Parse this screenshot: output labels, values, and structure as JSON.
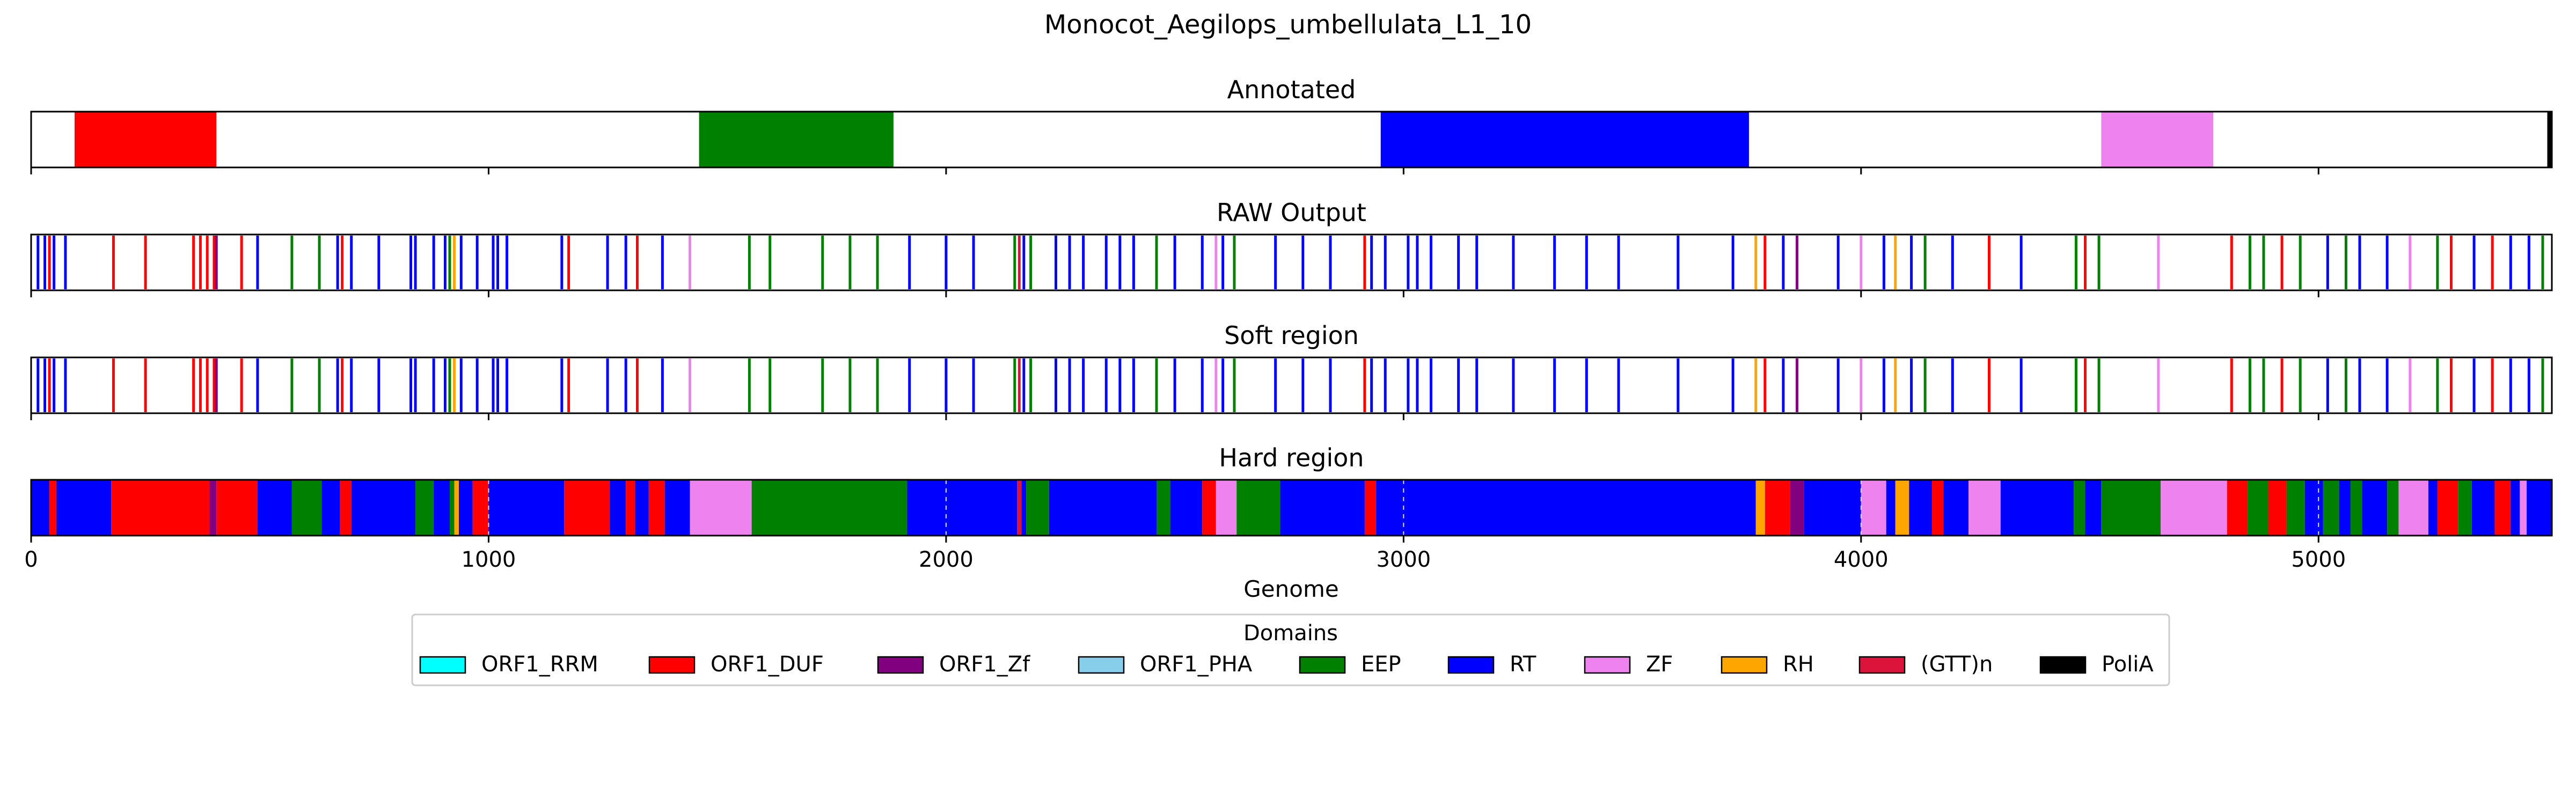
{
  "chart_data": {
    "type": "track",
    "title": "Monocot_Aegilops_umbellulata_L1_10",
    "xlabel": "Genome",
    "xlim": [
      0,
      5510
    ],
    "xticks": [
      0,
      1000,
      2000,
      3000,
      4000,
      5000
    ],
    "legend": {
      "title": "Domains",
      "placement": "bottom-center",
      "entries": [
        {
          "name": "ORF1_RRM",
          "color": "#00ffff"
        },
        {
          "name": "ORF1_DUF",
          "color": "#ff0000"
        },
        {
          "name": "ORF1_Zf",
          "color": "#800080"
        },
        {
          "name": "ORF1_PHA",
          "color": "#87ceeb"
        },
        {
          "name": "EEP",
          "color": "#008000"
        },
        {
          "name": "RT",
          "color": "#0000ff"
        },
        {
          "name": "ZF",
          "color": "#ee82ee"
        },
        {
          "name": "RH",
          "color": "#ffa500"
        },
        {
          "name": "(GTT)n",
          "color": "#dc143c"
        },
        {
          "name": "PoliA",
          "color": "#000000"
        }
      ]
    },
    "tracks": [
      {
        "name": "Annotated",
        "type": "spans",
        "spans": [
          {
            "start": 95,
            "end": 405,
            "domain": "ORF1_DUF"
          },
          {
            "start": 1460,
            "end": 1885,
            "domain": "EEP"
          },
          {
            "start": 2950,
            "end": 3755,
            "domain": "RT"
          },
          {
            "start": 4525,
            "end": 4770,
            "domain": "ZF"
          },
          {
            "start": 5500,
            "end": 5510,
            "domain": "PoliA"
          }
        ]
      },
      {
        "name": "RAW Output",
        "type": "marks",
        "marks": [
          {
            "x": 15,
            "domain": "RT"
          },
          {
            "x": 30,
            "domain": "RT"
          },
          {
            "x": 40,
            "domain": "ORF1_DUF"
          },
          {
            "x": 50,
            "domain": "RT"
          },
          {
            "x": 75,
            "domain": "RT"
          },
          {
            "x": 180,
            "domain": "ORF1_DUF"
          },
          {
            "x": 250,
            "domain": "ORF1_DUF"
          },
          {
            "x": 355,
            "domain": "ORF1_DUF"
          },
          {
            "x": 370,
            "domain": "ORF1_DUF"
          },
          {
            "x": 385,
            "domain": "ORF1_DUF"
          },
          {
            "x": 400,
            "domain": "ORF1_DUF"
          },
          {
            "x": 405,
            "domain": "ORF1_Zf"
          },
          {
            "x": 460,
            "domain": "ORF1_DUF"
          },
          {
            "x": 495,
            "domain": "RT"
          },
          {
            "x": 570,
            "domain": "EEP"
          },
          {
            "x": 630,
            "domain": "EEP"
          },
          {
            "x": 670,
            "domain": "RT"
          },
          {
            "x": 680,
            "domain": "ORF1_DUF"
          },
          {
            "x": 700,
            "domain": "RT"
          },
          {
            "x": 760,
            "domain": "RT"
          },
          {
            "x": 830,
            "domain": "RT"
          },
          {
            "x": 840,
            "domain": "RT"
          },
          {
            "x": 880,
            "domain": "RT"
          },
          {
            "x": 905,
            "domain": "RT"
          },
          {
            "x": 915,
            "domain": "EEP"
          },
          {
            "x": 925,
            "domain": "RH"
          },
          {
            "x": 940,
            "domain": "RT"
          },
          {
            "x": 975,
            "domain": "RT"
          },
          {
            "x": 1010,
            "domain": "RT"
          },
          {
            "x": 1020,
            "domain": "RT"
          },
          {
            "x": 1040,
            "domain": "RT"
          },
          {
            "x": 1160,
            "domain": "RT"
          },
          {
            "x": 1175,
            "domain": "ORF1_DUF"
          },
          {
            "x": 1260,
            "domain": "RT"
          },
          {
            "x": 1300,
            "domain": "RT"
          },
          {
            "x": 1325,
            "domain": "ORF1_DUF"
          },
          {
            "x": 1380,
            "domain": "RT"
          },
          {
            "x": 1440,
            "domain": "ZF"
          },
          {
            "x": 1570,
            "domain": "EEP"
          },
          {
            "x": 1615,
            "domain": "EEP"
          },
          {
            "x": 1730,
            "domain": "EEP"
          },
          {
            "x": 1790,
            "domain": "EEP"
          },
          {
            "x": 1850,
            "domain": "EEP"
          },
          {
            "x": 1920,
            "domain": "RT"
          },
          {
            "x": 2000,
            "domain": "RT"
          },
          {
            "x": 2060,
            "domain": "RT"
          },
          {
            "x": 2150,
            "domain": "EEP"
          },
          {
            "x": 2160,
            "domain": "(GTT)n"
          },
          {
            "x": 2170,
            "domain": "RT"
          },
          {
            "x": 2185,
            "domain": "EEP"
          },
          {
            "x": 2240,
            "domain": "RT"
          },
          {
            "x": 2270,
            "domain": "RT"
          },
          {
            "x": 2300,
            "domain": "RT"
          },
          {
            "x": 2350,
            "domain": "RT"
          },
          {
            "x": 2380,
            "domain": "RT"
          },
          {
            "x": 2410,
            "domain": "RT"
          },
          {
            "x": 2460,
            "domain": "EEP"
          },
          {
            "x": 2500,
            "domain": "RT"
          },
          {
            "x": 2560,
            "domain": "RT"
          },
          {
            "x": 2590,
            "domain": "ZF"
          },
          {
            "x": 2605,
            "domain": "RT"
          },
          {
            "x": 2630,
            "domain": "EEP"
          },
          {
            "x": 2720,
            "domain": "RT"
          },
          {
            "x": 2780,
            "domain": "RT"
          },
          {
            "x": 2840,
            "domain": "RT"
          },
          {
            "x": 2915,
            "domain": "ORF1_DUF"
          },
          {
            "x": 2930,
            "domain": "RT"
          },
          {
            "x": 2960,
            "domain": "RT"
          },
          {
            "x": 3010,
            "domain": "RT"
          },
          {
            "x": 3030,
            "domain": "RT"
          },
          {
            "x": 3060,
            "domain": "RT"
          },
          {
            "x": 3120,
            "domain": "RT"
          },
          {
            "x": 3160,
            "domain": "RT"
          },
          {
            "x": 3240,
            "domain": "RT"
          },
          {
            "x": 3330,
            "domain": "RT"
          },
          {
            "x": 3400,
            "domain": "RT"
          },
          {
            "x": 3470,
            "domain": "RT"
          },
          {
            "x": 3600,
            "domain": "RT"
          },
          {
            "x": 3720,
            "domain": "RT"
          },
          {
            "x": 3770,
            "domain": "RH"
          },
          {
            "x": 3790,
            "domain": "ORF1_DUF"
          },
          {
            "x": 3830,
            "domain": "RT"
          },
          {
            "x": 3860,
            "domain": "ORF1_Zf"
          },
          {
            "x": 3950,
            "domain": "RT"
          },
          {
            "x": 4000,
            "domain": "ZF"
          },
          {
            "x": 4050,
            "domain": "RT"
          },
          {
            "x": 4075,
            "domain": "RH"
          },
          {
            "x": 4110,
            "domain": "RT"
          },
          {
            "x": 4140,
            "domain": "EEP"
          },
          {
            "x": 4200,
            "domain": "RT"
          },
          {
            "x": 4280,
            "domain": "ORF1_DUF"
          },
          {
            "x": 4350,
            "domain": "RT"
          },
          {
            "x": 4470,
            "domain": "EEP"
          },
          {
            "x": 4490,
            "domain": "ORF1_DUF"
          },
          {
            "x": 4520,
            "domain": "EEP"
          },
          {
            "x": 4650,
            "domain": "ZF"
          },
          {
            "x": 4810,
            "domain": "ORF1_DUF"
          },
          {
            "x": 4850,
            "domain": "EEP"
          },
          {
            "x": 4880,
            "domain": "EEP"
          },
          {
            "x": 4920,
            "domain": "ORF1_DUF"
          },
          {
            "x": 4960,
            "domain": "EEP"
          },
          {
            "x": 5020,
            "domain": "RT"
          },
          {
            "x": 5060,
            "domain": "EEP"
          },
          {
            "x": 5090,
            "domain": "RT"
          },
          {
            "x": 5150,
            "domain": "RT"
          },
          {
            "x": 5200,
            "domain": "ZF"
          },
          {
            "x": 5260,
            "domain": "EEP"
          },
          {
            "x": 5290,
            "domain": "ORF1_DUF"
          },
          {
            "x": 5340,
            "domain": "RT"
          },
          {
            "x": 5380,
            "domain": "ORF1_DUF"
          },
          {
            "x": 5420,
            "domain": "RT"
          },
          {
            "x": 5460,
            "domain": "RT"
          },
          {
            "x": 5490,
            "domain": "EEP"
          }
        ]
      },
      {
        "name": "Soft region",
        "type": "marks",
        "same_as": "RAW Output"
      },
      {
        "name": "Hard region",
        "type": "spans",
        "spans": [
          {
            "start": 0,
            "end": 40,
            "domain": "RT"
          },
          {
            "start": 40,
            "end": 55,
            "domain": "ORF1_DUF"
          },
          {
            "start": 55,
            "end": 175,
            "domain": "RT"
          },
          {
            "start": 175,
            "end": 390,
            "domain": "ORF1_DUF"
          },
          {
            "start": 390,
            "end": 405,
            "domain": "ORF1_Zf"
          },
          {
            "start": 405,
            "end": 495,
            "domain": "ORF1_DUF"
          },
          {
            "start": 495,
            "end": 570,
            "domain": "RT"
          },
          {
            "start": 570,
            "end": 635,
            "domain": "EEP"
          },
          {
            "start": 635,
            "end": 675,
            "domain": "RT"
          },
          {
            "start": 675,
            "end": 700,
            "domain": "ORF1_DUF"
          },
          {
            "start": 700,
            "end": 840,
            "domain": "RT"
          },
          {
            "start": 840,
            "end": 880,
            "domain": "EEP"
          },
          {
            "start": 880,
            "end": 915,
            "domain": "RT"
          },
          {
            "start": 915,
            "end": 925,
            "domain": "EEP"
          },
          {
            "start": 925,
            "end": 935,
            "domain": "RH"
          },
          {
            "start": 935,
            "end": 965,
            "domain": "RT"
          },
          {
            "start": 965,
            "end": 1000,
            "domain": "ORF1_DUF"
          },
          {
            "start": 1000,
            "end": 1165,
            "domain": "RT"
          },
          {
            "start": 1165,
            "end": 1265,
            "domain": "ORF1_DUF"
          },
          {
            "start": 1265,
            "end": 1300,
            "domain": "RT"
          },
          {
            "start": 1300,
            "end": 1320,
            "domain": "ORF1_DUF"
          },
          {
            "start": 1320,
            "end": 1350,
            "domain": "RT"
          },
          {
            "start": 1350,
            "end": 1385,
            "domain": "ORF1_DUF"
          },
          {
            "start": 1385,
            "end": 1440,
            "domain": "RT"
          },
          {
            "start": 1440,
            "end": 1575,
            "domain": "ZF"
          },
          {
            "start": 1575,
            "end": 1915,
            "domain": "EEP"
          },
          {
            "start": 1915,
            "end": 2155,
            "domain": "RT"
          },
          {
            "start": 2155,
            "end": 2165,
            "domain": "(GTT)n"
          },
          {
            "start": 2165,
            "end": 2175,
            "domain": "RT"
          },
          {
            "start": 2175,
            "end": 2225,
            "domain": "EEP"
          },
          {
            "start": 2225,
            "end": 2460,
            "domain": "RT"
          },
          {
            "start": 2460,
            "end": 2490,
            "domain": "EEP"
          },
          {
            "start": 2490,
            "end": 2560,
            "domain": "RT"
          },
          {
            "start": 2560,
            "end": 2590,
            "domain": "ORF1_DUF"
          },
          {
            "start": 2590,
            "end": 2635,
            "domain": "ZF"
          },
          {
            "start": 2635,
            "end": 2730,
            "domain": "EEP"
          },
          {
            "start": 2730,
            "end": 2915,
            "domain": "RT"
          },
          {
            "start": 2915,
            "end": 2940,
            "domain": "ORF1_DUF"
          },
          {
            "start": 2940,
            "end": 3770,
            "domain": "RT"
          },
          {
            "start": 3770,
            "end": 3790,
            "domain": "RH"
          },
          {
            "start": 3790,
            "end": 3845,
            "domain": "ORF1_DUF"
          },
          {
            "start": 3845,
            "end": 3875,
            "domain": "ORF1_Zf"
          },
          {
            "start": 3875,
            "end": 4000,
            "domain": "RT"
          },
          {
            "start": 4000,
            "end": 4055,
            "domain": "ZF"
          },
          {
            "start": 4055,
            "end": 4075,
            "domain": "RT"
          },
          {
            "start": 4075,
            "end": 4105,
            "domain": "RH"
          },
          {
            "start": 4105,
            "end": 4155,
            "domain": "RT"
          },
          {
            "start": 4155,
            "end": 4180,
            "domain": "ORF1_DUF"
          },
          {
            "start": 4180,
            "end": 4235,
            "domain": "RT"
          },
          {
            "start": 4235,
            "end": 4305,
            "domain": "ZF"
          },
          {
            "start": 4305,
            "end": 4465,
            "domain": "RT"
          },
          {
            "start": 4465,
            "end": 4490,
            "domain": "EEP"
          },
          {
            "start": 4490,
            "end": 4525,
            "domain": "RT"
          },
          {
            "start": 4525,
            "end": 4655,
            "domain": "EEP"
          },
          {
            "start": 4655,
            "end": 4800,
            "domain": "ZF"
          },
          {
            "start": 4800,
            "end": 4845,
            "domain": "ORF1_DUF"
          },
          {
            "start": 4845,
            "end": 4890,
            "domain": "EEP"
          },
          {
            "start": 4890,
            "end": 4930,
            "domain": "ORF1_DUF"
          },
          {
            "start": 4930,
            "end": 4970,
            "domain": "EEP"
          },
          {
            "start": 4970,
            "end": 5010,
            "domain": "RT"
          },
          {
            "start": 5010,
            "end": 5045,
            "domain": "EEP"
          },
          {
            "start": 5045,
            "end": 5070,
            "domain": "RT"
          },
          {
            "start": 5070,
            "end": 5095,
            "domain": "EEP"
          },
          {
            "start": 5095,
            "end": 5150,
            "domain": "RT"
          },
          {
            "start": 5150,
            "end": 5175,
            "domain": "EEP"
          },
          {
            "start": 5175,
            "end": 5240,
            "domain": "ZF"
          },
          {
            "start": 5240,
            "end": 5260,
            "domain": "RT"
          },
          {
            "start": 5260,
            "end": 5305,
            "domain": "ORF1_DUF"
          },
          {
            "start": 5305,
            "end": 5335,
            "domain": "EEP"
          },
          {
            "start": 5335,
            "end": 5385,
            "domain": "RT"
          },
          {
            "start": 5385,
            "end": 5420,
            "domain": "ORF1_DUF"
          },
          {
            "start": 5420,
            "end": 5440,
            "domain": "RT"
          },
          {
            "start": 5440,
            "end": 5455,
            "domain": "ZF"
          },
          {
            "start": 5455,
            "end": 5510,
            "domain": "RT"
          }
        ]
      }
    ]
  }
}
